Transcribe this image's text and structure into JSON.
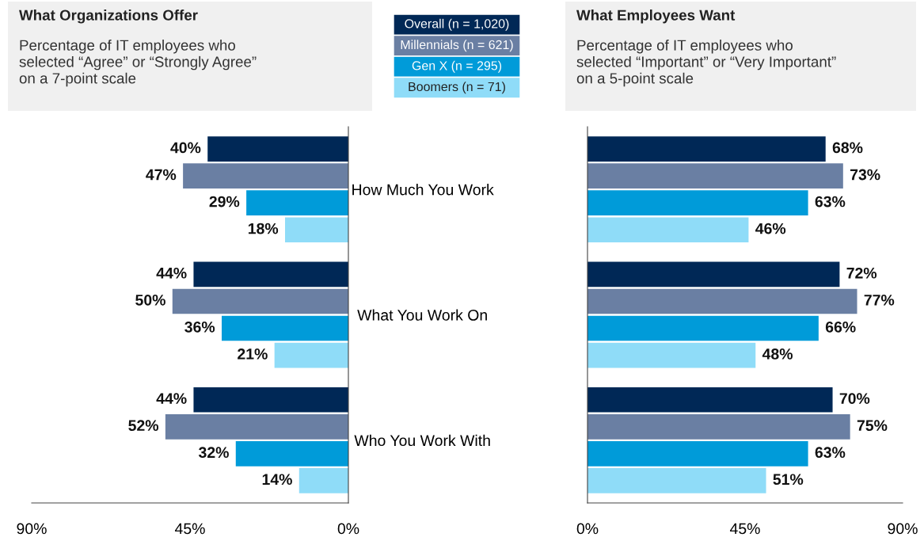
{
  "chart_data": [
    {
      "type": "bar",
      "orientation": "horizontal",
      "title": "What Organizations Offer",
      "subtitle": "Percentage of IT employees who\nselected “Agree” or “Strongly Agree”\non a 7-point scale",
      "categories": [
        null,
        null,
        null
      ],
      "tick_labels": "x",
      "legend": "top right",
      "xlim": [
        90,
        0
      ],
      "xticks": [
        {
          "value": 90,
          "label": "90%"
        },
        {
          "value": 45,
          "label": "45%"
        },
        {
          "value": 0,
          "label": "0%"
        }
      ],
      "series": [
        {
          "name": "Overall (n = 1,020)",
          "color": "#002856",
          "values": [
            40,
            44,
            44
          ],
          "value_labels": [
            "40%",
            "44%",
            "44%"
          ]
        },
        {
          "name": "Millennials (n = 621)",
          "color": "#6a7fa3",
          "values": [
            47,
            50,
            52
          ],
          "value_labels": [
            "47%",
            "50%",
            "52%"
          ]
        },
        {
          "name": "Gen X (n = 295)",
          "color": "#009bd9",
          "values": [
            29,
            36,
            32
          ],
          "value_labels": [
            "29%",
            "36%",
            "32%"
          ]
        },
        {
          "name": "Boomers (n = 71)",
          "color": "#8fdcf8",
          "values": [
            18,
            21,
            14
          ],
          "value_labels": [
            "18%",
            "21%",
            "14%"
          ]
        }
      ]
    },
    {
      "type": "bar",
      "orientation": "horizontal",
      "title": "What Employees Want",
      "subtitle": "Percentage of IT employees who\nselected “Important” or “Very Important”\non a 5-point scale",
      "categories": [
        "How Much You Work",
        "What You Work On",
        "Who You Work With"
      ],
      "xlim": [
        0,
        90
      ],
      "xticks": [
        {
          "value": 0,
          "label": "0%"
        },
        {
          "value": 45,
          "label": "45%"
        },
        {
          "value": 90,
          "label": "90%"
        }
      ],
      "series": [
        {
          "color": "#002856",
          "values": [
            68,
            72,
            70
          ],
          "value_labels": [
            "68%",
            "72%",
            "70%"
          ]
        },
        {
          "color": "#6a7fa3",
          "values": [
            73,
            77,
            75
          ],
          "value_labels": [
            "73%",
            "77%",
            "75%"
          ]
        },
        {
          "color": "#009bd9",
          "values": [
            63,
            66,
            63
          ],
          "value_labels": [
            "63%",
            "66%",
            "63%"
          ]
        },
        {
          "color": "#8fdcf8",
          "values": [
            46,
            48,
            51
          ],
          "value_labels": [
            "46%",
            "48%",
            "51%"
          ]
        }
      ]
    }
  ]
}
